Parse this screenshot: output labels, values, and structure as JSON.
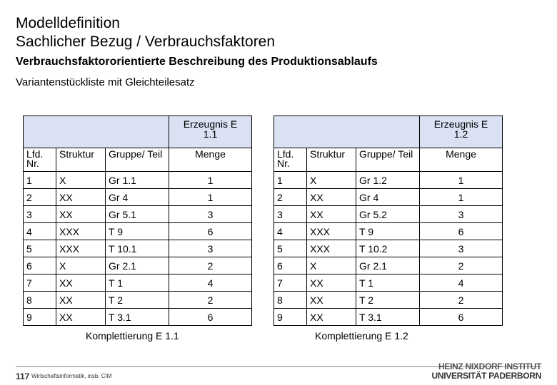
{
  "title_line1": "Modelldefinition",
  "title_line2": "Sachlicher Bezug / Verbrauchsfaktoren",
  "subtitle": "Verbrauchsfaktororientierte Beschreibung des Produktionsablaufs",
  "section": "Variantenstückliste mit Gleichteilesatz",
  "tables": [
    {
      "product_line1": "Erzeugnis E",
      "product_line2": "1.1",
      "headers": [
        "Lfd. Nr.",
        "Struktur",
        "Gruppe/ Teil",
        "Menge"
      ],
      "rows": [
        [
          "1",
          "X",
          "Gr 1.1",
          "1"
        ],
        [
          "2",
          "XX",
          "Gr 4",
          "1"
        ],
        [
          "3",
          "XX",
          "Gr 5.1",
          "3"
        ],
        [
          "4",
          "XXX",
          "T 9",
          "6"
        ],
        [
          "5",
          "XXX",
          "T 10.1",
          "3"
        ],
        [
          "6",
          "X",
          "Gr 2.1",
          "2"
        ],
        [
          "7",
          "XX",
          "T 1",
          "4"
        ],
        [
          "8",
          "XX",
          "T 2",
          "2"
        ],
        [
          "9",
          "XX",
          "T 3.1",
          "6"
        ]
      ],
      "caption": "Komplettierung E 1.1"
    },
    {
      "product_line1": "Erzeugnis E",
      "product_line2": "1.2",
      "headers": [
        "Lfd. Nr.",
        "Struktur",
        "Gruppe/ Teil",
        "Menge"
      ],
      "rows": [
        [
          "1",
          "X",
          "Gr 1.2",
          "1"
        ],
        [
          "2",
          "XX",
          "Gr 4",
          "1"
        ],
        [
          "3",
          "XX",
          "Gr 5.2",
          "3"
        ],
        [
          "4",
          "XXX",
          "T 9",
          "6"
        ],
        [
          "5",
          "XXX",
          "T 10.2",
          "3"
        ],
        [
          "6",
          "X",
          "Gr 2.1",
          "2"
        ],
        [
          "7",
          "XX",
          "T 1",
          "4"
        ],
        [
          "8",
          "XX",
          "T 2",
          "2"
        ],
        [
          "9",
          "XX",
          "T 3.1",
          "6"
        ]
      ],
      "caption": "Komplettierung E 1.2"
    }
  ],
  "footer": {
    "page_number": "117",
    "text": "Wirtschaftsinformatik, insb. CIM",
    "logo_line1": "HEINZ NIXDORF INSTITUT",
    "logo_line2": "UNIVERSITÄT PADERBORN"
  },
  "colors": {
    "header_fill": "#d9e1f2"
  }
}
